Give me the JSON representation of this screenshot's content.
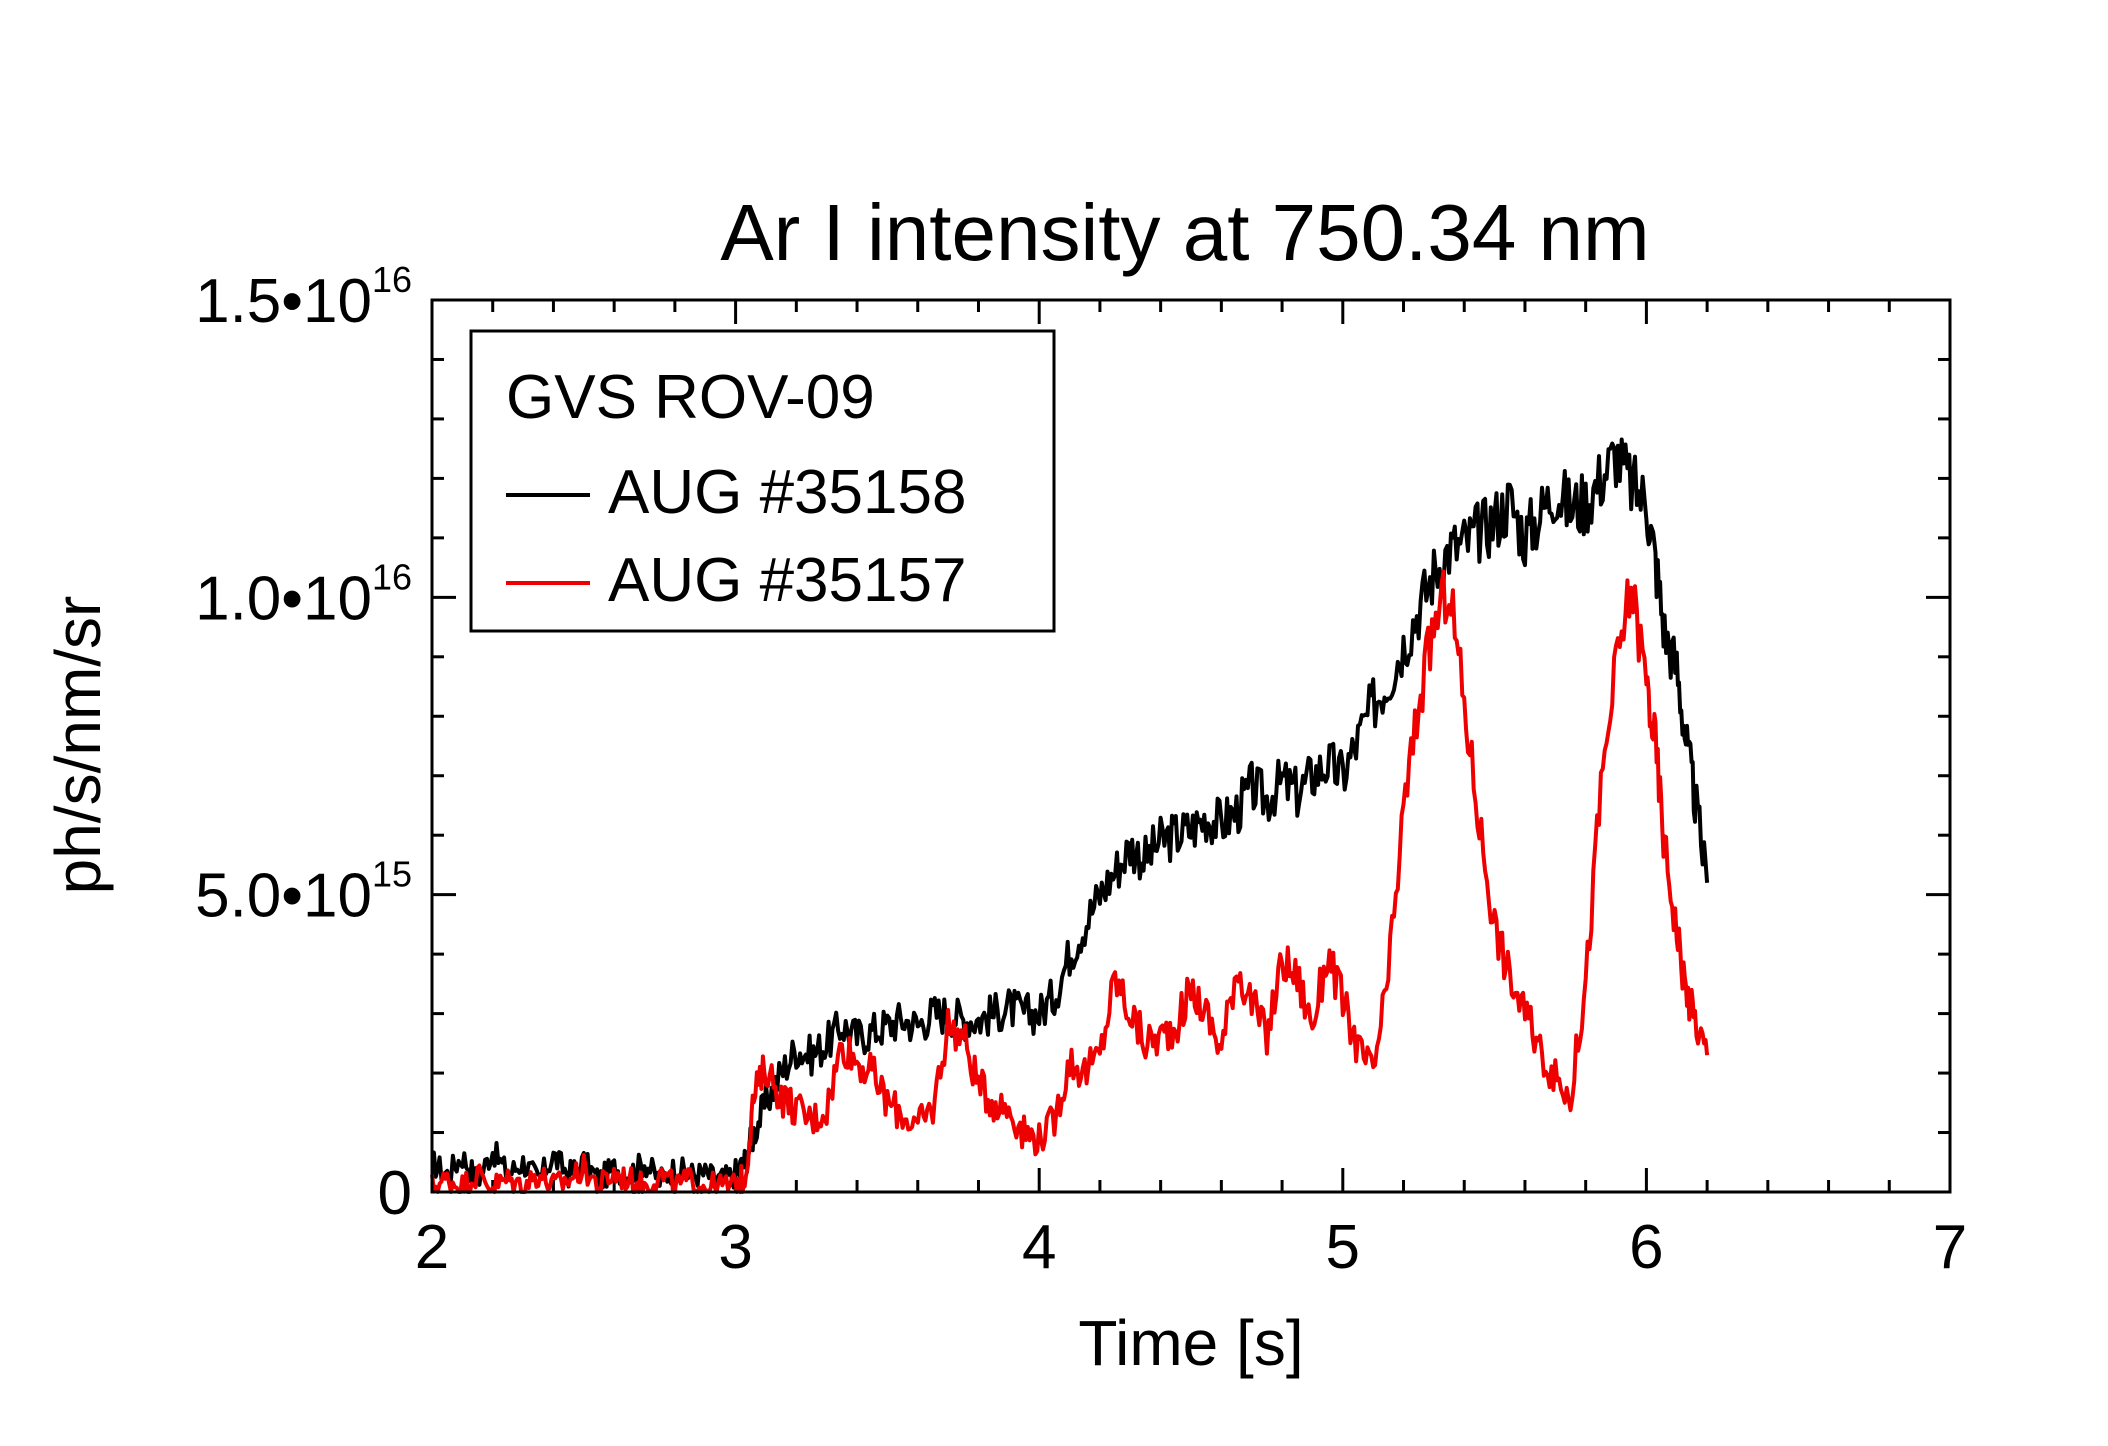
{
  "chart_data": {
    "type": "line",
    "title": "Ar I intensity at 750.34 nm",
    "xlabel": "Time [s]",
    "ylabel": "ph/s/nm/sr",
    "xlim": [
      2,
      7
    ],
    "ylim": [
      0,
      1.5e+16
    ],
    "x_ticks": [
      "2",
      "3",
      "4",
      "5",
      "6",
      "7"
    ],
    "y_ticks": [
      {
        "mantissa": "0",
        "exp": ""
      },
      {
        "mantissa": "5.0•10",
        "exp": "15"
      },
      {
        "mantissa": "1.0•10",
        "exp": "16"
      },
      {
        "mantissa": "1.5•10",
        "exp": "16"
      }
    ],
    "legend": {
      "header": "GVS ROV-09",
      "placement": "top-left",
      "entries": [
        "AUG #35158",
        "AUG #35157"
      ]
    },
    "series": [
      {
        "name": "AUG #35158",
        "color": "#000000",
        "x": [
          2.0,
          2.05,
          2.1,
          2.15,
          2.2,
          2.25,
          2.3,
          2.35,
          2.4,
          2.45,
          2.5,
          2.55,
          2.6,
          2.65,
          2.7,
          2.75,
          2.8,
          2.85,
          2.9,
          2.95,
          3.0,
          3.03,
          3.06,
          3.1,
          3.15,
          3.2,
          3.25,
          3.3,
          3.35,
          3.4,
          3.45,
          3.5,
          3.55,
          3.6,
          3.65,
          3.7,
          3.75,
          3.8,
          3.85,
          3.9,
          3.95,
          4.0,
          4.05,
          4.1,
          4.15,
          4.2,
          4.25,
          4.3,
          4.35,
          4.4,
          4.45,
          4.5,
          4.55,
          4.6,
          4.65,
          4.7,
          4.75,
          4.8,
          4.85,
          4.9,
          4.95,
          5.0,
          5.05,
          5.1,
          5.15,
          5.2,
          5.25,
          5.3,
          5.35,
          5.4,
          5.45,
          5.5,
          5.55,
          5.6,
          5.65,
          5.7,
          5.75,
          5.8,
          5.85,
          5.9,
          5.95,
          6.0,
          6.03,
          6.06,
          6.1,
          6.13,
          6.16,
          6.2
        ],
        "y": [
          500000000000000.0,
          300000000000000.0,
          600000000000000.0,
          200000000000000.0,
          700000000000000.0,
          300000000000000.0,
          500000000000000.0,
          200000000000000.0,
          600000000000000.0,
          300000000000000.0,
          500000000000000.0,
          200000000000000.0,
          400000000000000.0,
          300000000000000.0,
          500000000000000.0,
          200000000000000.0,
          400000000000000.0,
          300000000000000.0,
          300000000000000.0,
          200000000000000.0,
          300000000000000.0,
          500000000000000.0,
          1000000000000000.0,
          1500000000000000.0,
          2000000000000000.0,
          2400000000000000.0,
          2300000000000000.0,
          2500000000000000.0,
          2800000000000000.0,
          2600000000000000.0,
          2700000000000000.0,
          2800000000000000.0,
          2900000000000000.0,
          2800000000000000.0,
          3000000000000000.0,
          3000000000000000.0,
          2900000000000000.0,
          2900000000000000.0,
          3000000000000000.0,
          3100000000000000.0,
          3000000000000000.0,
          3000000000000000.0,
          3300000000000000.0,
          4000000000000000.0,
          4500000000000000.0,
          5000000000000000.0,
          5400000000000000.0,
          5800000000000000.0,
          5600000000000000.0,
          5900000000000000.0,
          6000000000000000.0,
          6100000000000000.0,
          6300000000000000.0,
          6200000000000000.0,
          6400000000000000.0,
          6800000000000000.0,
          6600000000000000.0,
          6900000000000000.0,
          6700000000000000.0,
          7000000000000000.0,
          7200000000000000.0,
          7000000000000000.0,
          7600000000000000.0,
          8200000000000000.0,
          8600000000000000.0,
          9200000000000000.0,
          9800000000000000.0,
          1.04e+16,
          1.08e+16,
          1.09e+16,
          1.11e+16,
          1.13e+16,
          1.16e+16,
          1.1e+16,
          1.14e+16,
          1.18e+16,
          1.15e+16,
          1.16e+16,
          1.2e+16,
          1.24e+16,
          1.19e+16,
          1.16e+16,
          1.06e+16,
          9400000000000000.0,
          8800000000000000.0,
          7600000000000000.0,
          6600000000000000.0,
          5200000000000000.0
        ]
      },
      {
        "name": "AUG #35157",
        "color": "#ee0000",
        "x": [
          2.0,
          2.05,
          2.1,
          2.15,
          2.2,
          2.25,
          2.3,
          2.35,
          2.4,
          2.45,
          2.5,
          2.55,
          2.6,
          2.65,
          2.7,
          2.75,
          2.8,
          2.85,
          2.9,
          2.95,
          3.0,
          3.03,
          3.06,
          3.1,
          3.15,
          3.2,
          3.25,
          3.3,
          3.35,
          3.4,
          3.45,
          3.5,
          3.55,
          3.6,
          3.65,
          3.7,
          3.75,
          3.8,
          3.85,
          3.9,
          3.95,
          4.0,
          4.05,
          4.1,
          4.15,
          4.2,
          4.25,
          4.3,
          4.35,
          4.4,
          4.45,
          4.5,
          4.55,
          4.6,
          4.65,
          4.7,
          4.75,
          4.8,
          4.85,
          4.9,
          4.95,
          5.0,
          5.05,
          5.1,
          5.15,
          5.2,
          5.25,
          5.3,
          5.35,
          5.4,
          5.45,
          5.5,
          5.55,
          5.6,
          5.65,
          5.7,
          5.75,
          5.8,
          5.85,
          5.9,
          5.95,
          6.0,
          6.03,
          6.06,
          6.1,
          6.13,
          6.16,
          6.2
        ],
        "y": [
          100000000000000.0,
          200000000000000.0,
          100000000000000.0,
          300000000000000.0,
          100000000000000.0,
          200000000000000.0,
          100000000000000.0,
          300000000000000.0,
          100000000000000.0,
          200000000000000.0,
          400000000000000.0,
          100000000000000.0,
          300000000000000.0,
          200000000000000.0,
          100000000000000.0,
          300000000000000.0,
          100000000000000.0,
          200000000000000.0,
          100000000000000.0,
          100000000000000.0,
          100000000000000.0,
          200000000000000.0,
          1600000000000000.0,
          2100000000000000.0,
          1600000000000000.0,
          1400000000000000.0,
          1200000000000000.0,
          1400000000000000.0,
          2500000000000000.0,
          2200000000000000.0,
          2000000000000000.0,
          1500000000000000.0,
          1300000000000000.0,
          1100000000000000.0,
          1400000000000000.0,
          2800000000000000.0,
          2600000000000000.0,
          1800000000000000.0,
          1500000000000000.0,
          1400000000000000.0,
          1000000000000000.0,
          900000000000000.0,
          1200000000000000.0,
          2200000000000000.0,
          2000000000000000.0,
          2300000000000000.0,
          3600000000000000.0,
          3000000000000000.0,
          2500000000000000.0,
          2600000000000000.0,
          2800000000000000.0,
          3400000000000000.0,
          3000000000000000.0,
          2400000000000000.0,
          3800000000000000.0,
          3200000000000000.0,
          2600000000000000.0,
          3900000000000000.0,
          3600000000000000.0,
          2800000000000000.0,
          4000000000000000.0,
          3200000000000000.0,
          2400000000000000.0,
          2000000000000000.0,
          3600000000000000.0,
          6400000000000000.0,
          8200000000000000.0,
          9500000000000000.0,
          1.02e+16,
          8200000000000000.0,
          6200000000000000.0,
          4500000000000000.0,
          3600000000000000.0,
          3000000000000000.0,
          2400000000000000.0,
          1900000000000000.0,
          1600000000000000.0,
          3500000000000000.0,
          6800000000000000.0,
          8800000000000000.0,
          1.02e+16,
          8600000000000000.0,
          7500000000000000.0,
          5800000000000000.0,
          4400000000000000.0,
          3400000000000000.0,
          2900000000000000.0,
          2300000000000000.0
        ]
      }
    ]
  }
}
